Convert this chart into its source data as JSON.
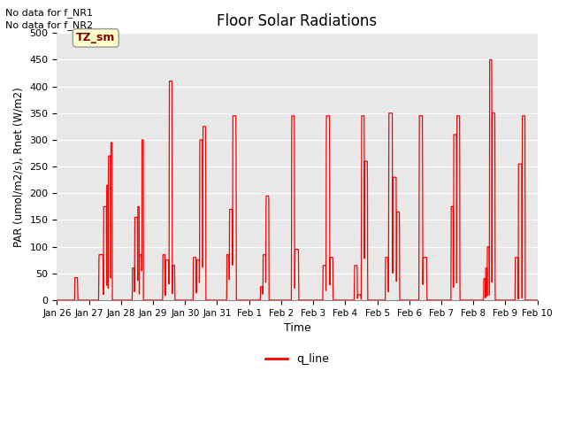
{
  "title": "Floor Solar Radiations",
  "xlabel": "Time",
  "ylabel": "PAR (umol/m2/s), Rnet (W/m2)",
  "ylim": [
    0,
    500
  ],
  "xlim": [
    0,
    15
  ],
  "legend_label": "q_line",
  "line_color": "red",
  "bg_color": "#e8e8e8",
  "text_no_data_1": "No data for f_NR1",
  "text_no_data_2": "No data for f_NR2",
  "tz_sm_label": "TZ_sm",
  "xtick_labels": [
    "Jan 26",
    "Jan 27",
    "Jan 28",
    "Jan 29",
    "Jan 30",
    "Jan 31",
    "Feb 1",
    "Feb 2",
    "Feb 3",
    "Feb 4",
    "Feb 5",
    "Feb 6",
    "Feb 7",
    "Feb 8",
    "Feb 9",
    "Feb 10"
  ],
  "ytick_values": [
    0,
    50,
    100,
    150,
    200,
    250,
    300,
    350,
    400,
    450,
    500
  ],
  "segments": [
    {
      "day": 0,
      "spikes": [
        {
          "start": 0.55,
          "end": 0.65,
          "peak": 42
        }
      ]
    },
    {
      "day": 1,
      "spikes": [
        {
          "start": 0.3,
          "end": 0.45,
          "peak": 85
        },
        {
          "start": 0.45,
          "end": 0.55,
          "peak": 175
        },
        {
          "start": 0.55,
          "end": 0.6,
          "peak": 215
        },
        {
          "start": 0.6,
          "end": 0.68,
          "peak": 270
        },
        {
          "start": 0.68,
          "end": 0.73,
          "peak": 295
        }
      ]
    },
    {
      "day": 2,
      "spikes": [
        {
          "start": 0.35,
          "end": 0.42,
          "peak": 60
        },
        {
          "start": 0.42,
          "end": 0.52,
          "peak": 155
        },
        {
          "start": 0.52,
          "end": 0.57,
          "peak": 175
        },
        {
          "start": 0.57,
          "end": 0.65,
          "peak": 85
        },
        {
          "start": 0.65,
          "end": 0.7,
          "peak": 300
        }
      ]
    },
    {
      "day": 3,
      "spikes": [
        {
          "start": 0.3,
          "end": 0.38,
          "peak": 85
        },
        {
          "start": 0.38,
          "end": 0.5,
          "peak": 75
        },
        {
          "start": 0.5,
          "end": 0.6,
          "peak": 410
        },
        {
          "start": 0.6,
          "end": 0.68,
          "peak": 65
        }
      ]
    },
    {
      "day": 4,
      "spikes": [
        {
          "start": 0.25,
          "end": 0.35,
          "peak": 80
        },
        {
          "start": 0.35,
          "end": 0.45,
          "peak": 75
        },
        {
          "start": 0.45,
          "end": 0.55,
          "peak": 300
        },
        {
          "start": 0.55,
          "end": 0.65,
          "peak": 325
        }
      ]
    },
    {
      "day": 5,
      "spikes": [
        {
          "start": 0.3,
          "end": 0.38,
          "peak": 85
        },
        {
          "start": 0.38,
          "end": 0.48,
          "peak": 170
        },
        {
          "start": 0.48,
          "end": 0.6,
          "peak": 345
        }
      ]
    },
    {
      "day": 6,
      "spikes": [
        {
          "start": 0.35,
          "end": 0.43,
          "peak": 25
        },
        {
          "start": 0.43,
          "end": 0.52,
          "peak": 85
        },
        {
          "start": 0.52,
          "end": 0.62,
          "peak": 195
        }
      ]
    },
    {
      "day": 7,
      "spikes": [
        {
          "start": 0.32,
          "end": 0.42,
          "peak": 345
        },
        {
          "start": 0.42,
          "end": 0.55,
          "peak": 95
        }
      ]
    },
    {
      "day": 8,
      "spikes": [
        {
          "start": 0.3,
          "end": 0.4,
          "peak": 65
        },
        {
          "start": 0.4,
          "end": 0.52,
          "peak": 345
        },
        {
          "start": 0.52,
          "end": 0.62,
          "peak": 80
        }
      ]
    },
    {
      "day": 9,
      "spikes": [
        {
          "start": 0.28,
          "end": 0.38,
          "peak": 65
        },
        {
          "start": 0.38,
          "end": 0.5,
          "peak": 10
        },
        {
          "start": 0.5,
          "end": 0.6,
          "peak": 345
        },
        {
          "start": 0.6,
          "end": 0.7,
          "peak": 260
        }
      ]
    },
    {
      "day": 10,
      "spikes": [
        {
          "start": 0.25,
          "end": 0.35,
          "peak": 80
        },
        {
          "start": 0.35,
          "end": 0.48,
          "peak": 350
        },
        {
          "start": 0.48,
          "end": 0.6,
          "peak": 230
        },
        {
          "start": 0.6,
          "end": 0.7,
          "peak": 165
        }
      ]
    },
    {
      "day": 11,
      "spikes": [
        {
          "start": 0.3,
          "end": 0.42,
          "peak": 345
        },
        {
          "start": 0.42,
          "end": 0.55,
          "peak": 80
        }
      ]
    },
    {
      "day": 12,
      "spikes": [
        {
          "start": 0.3,
          "end": 0.38,
          "peak": 175
        },
        {
          "start": 0.38,
          "end": 0.48,
          "peak": 310
        },
        {
          "start": 0.48,
          "end": 0.58,
          "peak": 345
        }
      ]
    },
    {
      "day": 13,
      "spikes": [
        {
          "start": 0.32,
          "end": 0.38,
          "peak": 40
        },
        {
          "start": 0.38,
          "end": 0.43,
          "peak": 60
        },
        {
          "start": 0.43,
          "end": 0.5,
          "peak": 100
        },
        {
          "start": 0.5,
          "end": 0.58,
          "peak": 450
        },
        {
          "start": 0.58,
          "end": 0.68,
          "peak": 350
        }
      ]
    },
    {
      "day": 14,
      "spikes": [
        {
          "start": 0.3,
          "end": 0.4,
          "peak": 80
        },
        {
          "start": 0.4,
          "end": 0.52,
          "peak": 255
        },
        {
          "start": 0.52,
          "end": 0.62,
          "peak": 345
        }
      ]
    }
  ]
}
